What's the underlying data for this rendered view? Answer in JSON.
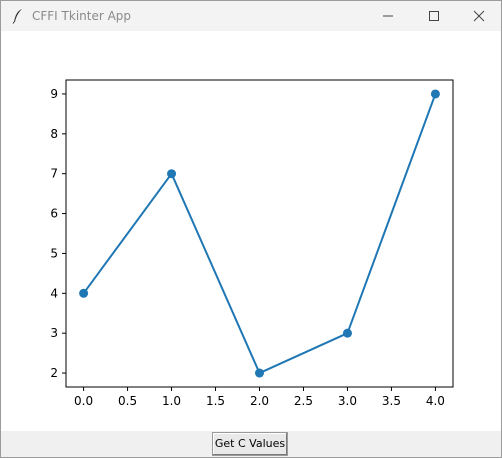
{
  "window": {
    "title": "CFFI Tkinter App",
    "icon": "feather-icon",
    "controls": [
      "minimize-icon",
      "maximize-icon",
      "close-icon"
    ]
  },
  "toolbar": {
    "get_values_label": "Get C Values"
  },
  "colors": {
    "series": "#1f77b4",
    "axes": "#000000",
    "canvas_bg": "#ffffff",
    "window_bg": "#f0f0f0"
  },
  "chart_data": {
    "type": "line",
    "markers": "circle",
    "x": [
      0.0,
      1.0,
      2.0,
      3.0,
      4.0
    ],
    "series": [
      {
        "values": [
          4,
          7,
          2,
          3,
          9
        ]
      }
    ],
    "xlim": [
      -0.2,
      4.2
    ],
    "ylim": [
      1.65,
      9.35
    ],
    "xticks": [
      "0.0",
      "0.5",
      "1.0",
      "1.5",
      "2.0",
      "2.5",
      "3.0",
      "3.5",
      "4.0"
    ],
    "xtick_values": [
      0,
      0.5,
      1,
      1.5,
      2,
      2.5,
      3,
      3.5,
      4
    ],
    "yticks": [
      "2",
      "3",
      "4",
      "5",
      "6",
      "7",
      "8",
      "9"
    ],
    "ytick_values": [
      2,
      3,
      4,
      5,
      6,
      7,
      8,
      9
    ],
    "title": "",
    "xlabel": "",
    "ylabel": "",
    "grid": false,
    "legend": false
  }
}
